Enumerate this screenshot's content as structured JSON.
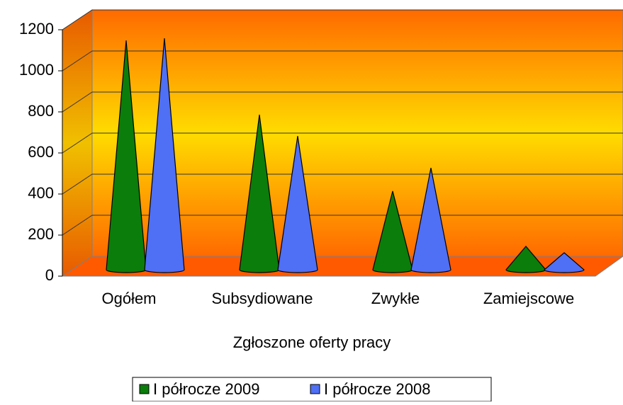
{
  "chart_data": {
    "type": "cone",
    "x_label": "Zgłoszone oferty pracy",
    "categories": [
      "Ogółem",
      "Subsydiowane",
      "Zwykłe",
      "Zamiejscowe"
    ],
    "series": [
      {
        "name": "I półrocze 2009",
        "color": "#0b7d0b",
        "values": [
          1100,
          738,
          366,
          97
        ]
      },
      {
        "name": "I półrocze 2008",
        "color": "#4f6ff5",
        "values": [
          1110,
          634,
          479,
          66
        ]
      }
    ],
    "ylim": [
      0,
      1200
    ],
    "yticks": [
      0,
      200,
      400,
      600,
      800,
      1000,
      1200
    ],
    "grid": true,
    "legend": "bottom"
  }
}
